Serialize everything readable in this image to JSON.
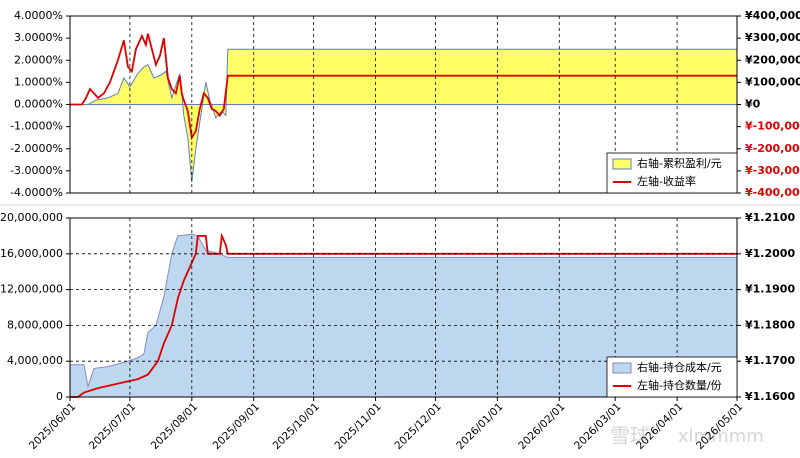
{
  "chart_data": [
    {
      "type": "area_line",
      "ylim": [
        -4,
        4
      ],
      "yticks": [
        {
          "value": 4,
          "label": "4.0000%"
        },
        {
          "value": 3,
          "label": "3.0000%"
        },
        {
          "value": 2,
          "label": "2.0000%"
        },
        {
          "value": 1,
          "label": "1.0000%"
        },
        {
          "value": 0,
          "label": "0.0000%"
        },
        {
          "value": -1,
          "label": "-1.0000%"
        },
        {
          "value": -2,
          "label": "-2.0000%"
        },
        {
          "value": -3,
          "label": "-3.0000%"
        },
        {
          "value": -4,
          "label": "-4.0000%"
        }
      ],
      "y2lim": [
        -400000,
        400000
      ],
      "y2ticks": [
        {
          "value": 400000,
          "label": "¥400,000"
        },
        {
          "value": 300000,
          "label": "¥300,000"
        },
        {
          "value": 200000,
          "label": "¥200,000"
        },
        {
          "value": 100000,
          "label": "¥100,000"
        },
        {
          "value": 0,
          "label": "¥0"
        },
        {
          "value": -100000,
          "label": "¥-100,000"
        },
        {
          "value": -200000,
          "label": "¥-200,000"
        },
        {
          "value": -300000,
          "label": "¥-300,000"
        },
        {
          "value": -400000,
          "label": "¥-400,000"
        }
      ],
      "negative_tick_color": "#e00000",
      "xgrid": true,
      "ygrid": false,
      "series": [
        {
          "name": "右轴-累积盈利/元",
          "kind": "area",
          "axis": "y2",
          "color": "#ffff66",
          "edge_color": "#5b7fc0",
          "x": [
            "2025/06/01",
            "2025/06/10",
            "2025/06/14",
            "2025/06/20",
            "2025/06/25",
            "2025/06/28",
            "2025/07/01",
            "2025/07/05",
            "2025/07/08",
            "2025/07/10",
            "2025/07/13",
            "2025/07/16",
            "2025/07/19",
            "2025/07/22",
            "2025/07/26",
            "2025/07/28",
            "2025/07/30",
            "2025/08/01",
            "2025/08/03",
            "2025/08/06",
            "2025/08/08",
            "2025/08/10",
            "2025/08/13",
            "2025/08/16",
            "2025/08/18",
            "2025/08/19",
            "2026/05/01"
          ],
          "values": [
            0,
            0,
            20000,
            30000,
            50000,
            120000,
            80000,
            140000,
            170000,
            180000,
            120000,
            130000,
            150000,
            30000,
            140000,
            -50000,
            -150000,
            -350000,
            -200000,
            -20000,
            100000,
            20000,
            -60000,
            -30000,
            -50000,
            250000,
            250000
          ]
        },
        {
          "name": "左轴-收益率",
          "kind": "line",
          "axis": "y",
          "color": "#e00000",
          "x": [
            "2025/06/01",
            "2025/06/07",
            "2025/06/09",
            "2025/06/11",
            "2025/06/13",
            "2025/06/15",
            "2025/06/18",
            "2025/06/21",
            "2025/06/23",
            "2025/06/25",
            "2025/06/28",
            "2025/06/30",
            "2025/07/02",
            "2025/07/04",
            "2025/07/07",
            "2025/07/09",
            "2025/07/10",
            "2025/07/12",
            "2025/07/14",
            "2025/07/16",
            "2025/07/18",
            "2025/07/20",
            "2025/07/22",
            "2025/07/24",
            "2025/07/26",
            "2025/07/27",
            "2025/07/28",
            "2025/07/30",
            "2025/08/01",
            "2025/08/03",
            "2025/08/05",
            "2025/08/07",
            "2025/08/09",
            "2025/08/11",
            "2025/08/13",
            "2025/08/15",
            "2025/08/17",
            "2025/08/19",
            "2026/05/01"
          ],
          "values": [
            0,
            0,
            0.3,
            0.7,
            0.5,
            0.3,
            0.5,
            1.0,
            1.5,
            2.0,
            2.9,
            1.7,
            1.5,
            2.5,
            3.1,
            2.7,
            3.2,
            2.5,
            1.8,
            2.2,
            3.0,
            1.2,
            0.7,
            0.5,
            1.3,
            0.5,
            0.2,
            -0.3,
            -1.5,
            -1.2,
            -0.2,
            0.5,
            0.3,
            -0.2,
            -0.3,
            -0.5,
            -0.2,
            1.3,
            1.3
          ]
        }
      ]
    },
    {
      "type": "area_line",
      "ylim": [
        0,
        20000000
      ],
      "yticks": [
        {
          "value": 20000000,
          "label": "20,000,000"
        },
        {
          "value": 16000000,
          "label": "16,000,000"
        },
        {
          "value": 12000000,
          "label": "12,000,000"
        },
        {
          "value": 8000000,
          "label": "8,000,000"
        },
        {
          "value": 4000000,
          "label": "4,000,000"
        },
        0
      ],
      "y2lim": [
        1.16,
        1.21
      ],
      "y2ticks": [
        {
          "value": 1.21,
          "label": "¥1.2100"
        },
        {
          "value": 1.2,
          "label": "¥1.2000"
        },
        {
          "value": 1.19,
          "label": "¥1.1900"
        },
        {
          "value": 1.18,
          "label": "¥1.1800"
        },
        {
          "value": 1.17,
          "label": "¥1.1700"
        },
        {
          "value": 1.16,
          "label": "¥1.1600"
        }
      ],
      "xlim": [
        "2025/06/01",
        "2026/05/01"
      ],
      "xticks": [
        "2025/06/01",
        "2025/07/01",
        "2025/08/01",
        "2025/09/01",
        "2025/10/01",
        "2025/11/01",
        "2025/12/01",
        "2026/01/01",
        "2026/02/01",
        "2026/03/01",
        "2026/04/01",
        "2026/05/01"
      ],
      "xgrid": true,
      "ygrid": true,
      "series": [
        {
          "name": "右轴-持仓成本/元",
          "kind": "area",
          "axis": "y2",
          "color": "#bdd7ee",
          "edge_color": "#8a86c8",
          "x": [
            "2025/06/01",
            "2025/06/08",
            "2025/06/10",
            "2025/06/13",
            "2025/06/20",
            "2025/06/30",
            "2025/07/05",
            "2025/07/08",
            "2025/07/10",
            "2025/07/14",
            "2025/07/18",
            "2025/07/22",
            "2025/07/25",
            "2025/08/01",
            "2025/08/04",
            "2025/08/08",
            "2025/08/15",
            "2025/08/19",
            "2026/05/01"
          ],
          "values": [
            1.169,
            1.169,
            1.163,
            1.168,
            1.1685,
            1.17,
            1.171,
            1.172,
            1.178,
            1.18,
            1.188,
            1.2,
            1.205,
            1.2055,
            1.205,
            1.201,
            1.2,
            1.199,
            1.199
          ]
        },
        {
          "name": "左轴-持仓数量/份",
          "kind": "line",
          "axis": "y",
          "color": "#e00000",
          "x": [
            "2025/06/01",
            "2025/06/05",
            "2025/06/08",
            "2025/06/15",
            "2025/06/25",
            "2025/07/05",
            "2025/07/10",
            "2025/07/15",
            "2025/07/18",
            "2025/07/22",
            "2025/07/25",
            "2025/07/28",
            "2025/08/01",
            "2025/08/03",
            "2025/08/04",
            "2025/08/08",
            "2025/08/09",
            "2025/08/15",
            "2025/08/16",
            "2025/08/18",
            "2025/08/19",
            "2026/05/01"
          ],
          "values": [
            0,
            0,
            500000,
            1000000,
            1500000,
            2000000,
            2500000,
            4000000,
            6000000,
            8000000,
            11000000,
            13000000,
            15000000,
            16000000,
            18000000,
            18000000,
            16000000,
            16000000,
            18000000,
            17000000,
            16000000,
            16000000
          ]
        }
      ]
    }
  ],
  "watermark": {
    "brand": "雪球",
    "user": "xlmmmm"
  }
}
